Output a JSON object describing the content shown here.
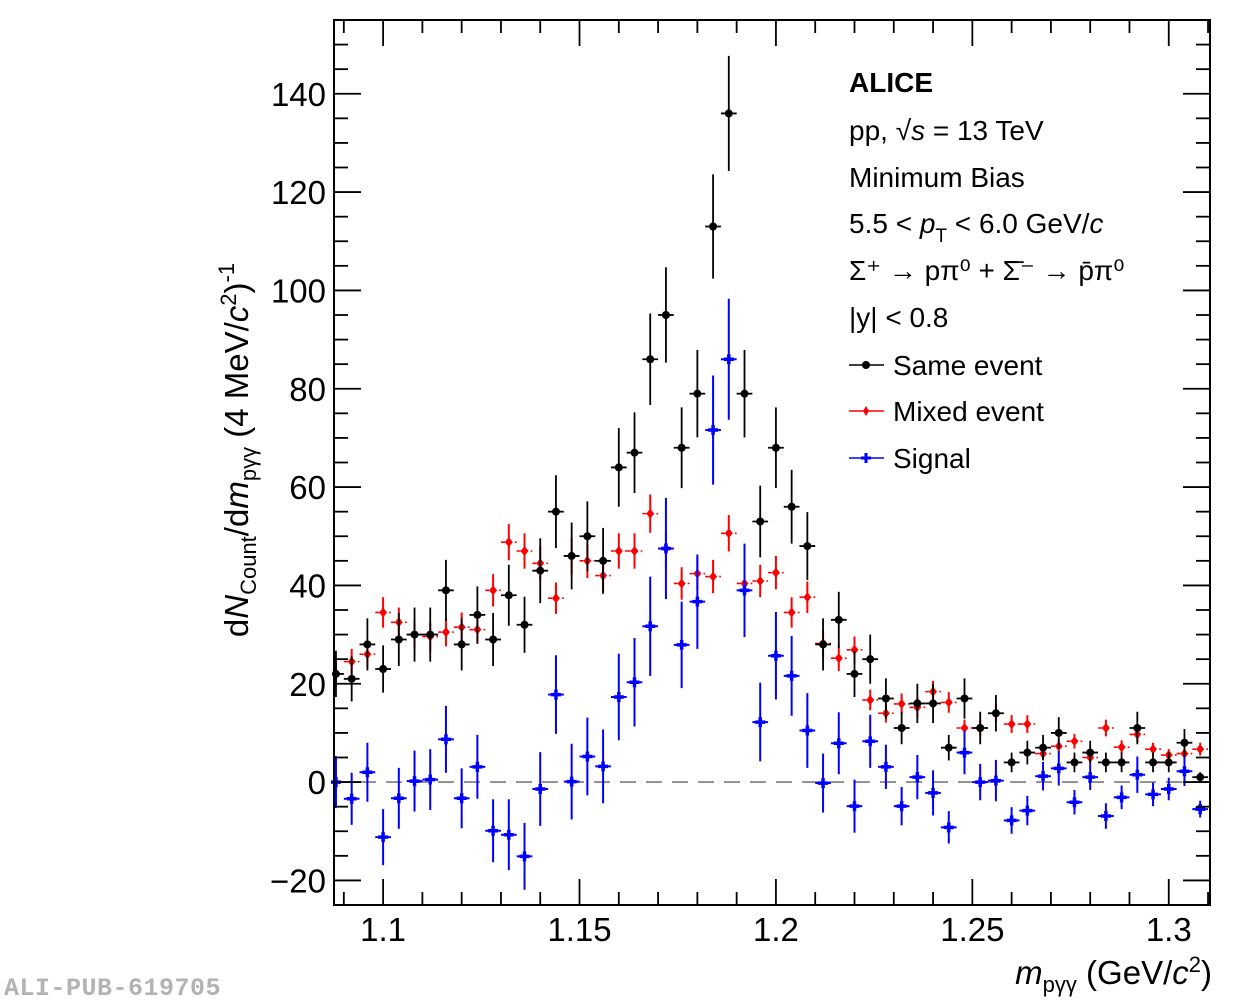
{
  "watermark": "ALI-PUB-619705",
  "chart_data": {
    "type": "scatter",
    "title": "",
    "xlabel": {
      "main": "m",
      "sub": "pγγ",
      "unit": " (GeV/c²)"
    },
    "ylabel": {
      "text": "dN_Count/dm_pγγ (4 MeV/c²)⁻¹"
    },
    "xlim": [
      1.0875,
      1.3105
    ],
    "ylim": [
      -25,
      155
    ],
    "xticks": [
      1.1,
      1.15,
      1.2,
      1.25,
      1.3
    ],
    "xtick_labels": [
      "1.1",
      "1.15",
      "1.2",
      "1.25",
      "1.3"
    ],
    "yticks": [
      -20,
      0,
      20,
      40,
      60,
      80,
      100,
      120,
      140
    ],
    "ytick_labels": [
      "−20",
      "0",
      "20",
      "40",
      "60",
      "80",
      "100",
      "120",
      "140"
    ],
    "reference_line": {
      "y": 0,
      "style": "dashed",
      "color": "#8c8c8c"
    },
    "annotations": {
      "experiment": "ALICE",
      "system_prefix": "pp, ",
      "sqrt_s": "√s",
      "system_suffix": " = 13 TeV",
      "trigger": "Minimum Bias",
      "pt_range_prefix": "5.5 < ",
      "pt_symbol": "p",
      "pt_sub": "T",
      "pt_range_suffix": " < 6.0 GeV/",
      "pt_unit_c": "c",
      "decay": "Σ⁺ → pπ⁰ + Σ̄⁻ → p̄π⁰",
      "rapidity": "|y| < 0.8"
    },
    "legend_position": "top-right",
    "bin_width": 0.004,
    "x": [
      1.088,
      1.092,
      1.096,
      1.1,
      1.104,
      1.108,
      1.112,
      1.116,
      1.12,
      1.124,
      1.128,
      1.132,
      1.136,
      1.14,
      1.144,
      1.148,
      1.152,
      1.156,
      1.16,
      1.164,
      1.168,
      1.172,
      1.176,
      1.18,
      1.184,
      1.188,
      1.192,
      1.196,
      1.2,
      1.204,
      1.208,
      1.212,
      1.216,
      1.22,
      1.224,
      1.228,
      1.232,
      1.236,
      1.24,
      1.244,
      1.248,
      1.252,
      1.256,
      1.26,
      1.264,
      1.268,
      1.272,
      1.276,
      1.28,
      1.284,
      1.288,
      1.292,
      1.296,
      1.3,
      1.304,
      1.308
    ],
    "series": [
      {
        "name": "Same event",
        "color": "#000000",
        "marker": "circle",
        "values": [
          22,
          21,
          28,
          23,
          29,
          30,
          30,
          39,
          28,
          34,
          29,
          38,
          32,
          43,
          55,
          46,
          50,
          45,
          64,
          67,
          86,
          95,
          68,
          79,
          113,
          136,
          79,
          53,
          68,
          56,
          48,
          28,
          33,
          22,
          25,
          17,
          11,
          16,
          16,
          7,
          17,
          11,
          14,
          4,
          6,
          7,
          10,
          4,
          6,
          4,
          4,
          11,
          4,
          4,
          8,
          1
        ],
        "errors": [
          4.7,
          4.6,
          5.3,
          4.8,
          5.4,
          5.5,
          5.5,
          6.2,
          5.3,
          5.8,
          5.4,
          6.2,
          5.7,
          6.6,
          7.4,
          6.8,
          7.1,
          6.7,
          8.0,
          8.2,
          9.3,
          9.7,
          8.2,
          8.9,
          10.6,
          11.7,
          8.9,
          7.3,
          8.2,
          7.5,
          6.9,
          5.3,
          5.7,
          4.7,
          5.0,
          4.1,
          3.3,
          4.0,
          4.0,
          2.6,
          4.1,
          3.3,
          3.7,
          2.0,
          2.4,
          2.6,
          3.2,
          2.0,
          2.4,
          2.0,
          2.0,
          3.3,
          2.0,
          2.0,
          2.8,
          1.0
        ]
      },
      {
        "name": "Mixed event",
        "color": "#ff0000",
        "marker": "diamond",
        "values": [
          22,
          24.5,
          26,
          34.5,
          32.5,
          30,
          29.6,
          30.5,
          31.5,
          31,
          39,
          48.8,
          47,
          44.5,
          37.4,
          46,
          45,
          42,
          47,
          47,
          54.6,
          47.5,
          40.4,
          42.4,
          41.8,
          50.6,
          40.4,
          40.9,
          42.6,
          34.5,
          37.6,
          28.2,
          25.2,
          26.9,
          16.7,
          14,
          15.9,
          15.2,
          18.4,
          16.2,
          11,
          11,
          14,
          11.8,
          11.8,
          5.8,
          7.3,
          8.3,
          5,
          11,
          7.1,
          9.7,
          6.7,
          5.5,
          5.8,
          6.7
        ],
        "errors": [
          2.5,
          2.6,
          2.7,
          3.1,
          3.0,
          2.9,
          2.9,
          2.9,
          3.0,
          2.9,
          3.3,
          3.7,
          3.6,
          3.5,
          3.2,
          3.6,
          3.5,
          3.4,
          3.6,
          3.6,
          3.9,
          3.6,
          3.3,
          3.4,
          3.4,
          3.7,
          3.3,
          3.3,
          3.4,
          3.1,
          3.2,
          2.8,
          2.6,
          2.7,
          2.1,
          1.9,
          2.1,
          2.0,
          2.2,
          2.1,
          1.7,
          1.7,
          1.9,
          1.8,
          1.8,
          1.2,
          1.4,
          1.5,
          1.1,
          1.7,
          1.4,
          1.6,
          1.3,
          1.2,
          1.2,
          1.3
        ]
      },
      {
        "name": "Signal",
        "color": "#0000ff",
        "marker": "cross",
        "values": [
          0,
          -3.4,
          2,
          -11.2,
          -3.3,
          0.2,
          0.5,
          8.7,
          -3.3,
          3.1,
          -9.9,
          -10.7,
          -15.1,
          -1.4,
          17.8,
          0.1,
          5.2,
          3.2,
          17.3,
          20.3,
          31.7,
          47.5,
          27.9,
          36.7,
          71.6,
          86,
          39,
          12.2,
          25.7,
          21.6,
          10.5,
          -0.2,
          7.9,
          -4.9,
          8.3,
          3.1,
          -4.9,
          1,
          -2.2,
          -9.2,
          6,
          0,
          0.3,
          -7.8,
          -5.8,
          1.2,
          2.8,
          -4.1,
          1,
          -6.9,
          -3.1,
          1.5,
          -2.5,
          -1.4,
          2.2,
          -5.5
        ],
        "errors": [
          5.3,
          5.3,
          6.0,
          5.7,
          6.2,
          6.2,
          6.2,
          6.8,
          6.1,
          6.5,
          6.4,
          7.2,
          6.8,
          7.5,
          8.0,
          7.7,
          7.9,
          7.5,
          8.8,
          9.0,
          10.1,
          10.3,
          8.8,
          9.6,
          11.1,
          12.3,
          9.5,
          8.0,
          8.9,
          8.1,
          7.6,
          6.0,
          6.3,
          5.4,
          5.4,
          4.5,
          3.9,
          4.5,
          4.6,
          3.3,
          4.4,
          3.7,
          4.2,
          2.7,
          3.0,
          2.9,
          3.5,
          2.5,
          2.6,
          2.6,
          2.4,
          3.7,
          2.4,
          2.3,
          3.0,
          1.7
        ]
      }
    ]
  }
}
